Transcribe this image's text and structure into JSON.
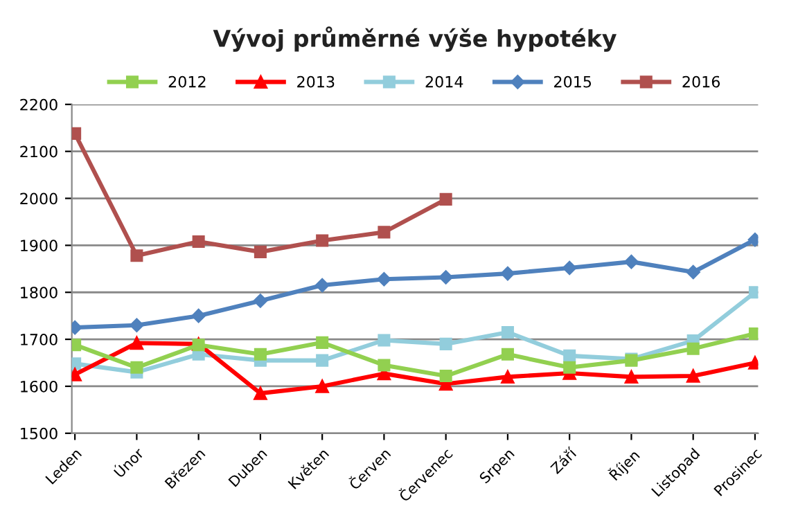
{
  "chart_data": {
    "type": "line",
    "title": "Vývoj průměrné výše hypotéky",
    "categories": [
      "Leden",
      "Únor",
      "Březen",
      "Duben",
      "Květen",
      "Červen",
      "Červenec",
      "Srpen",
      "Září",
      "Říjen",
      "Listopad",
      "Prosinec"
    ],
    "series": [
      {
        "name": "2012",
        "color": "#92d050",
        "marker": "square",
        "values": [
          1688,
          1640,
          1688,
          1668,
          1693,
          1645,
          1622,
          1668,
          1640,
          1655,
          1680,
          1712
        ]
      },
      {
        "name": "2013",
        "color": "#ff0000",
        "marker": "triangle",
        "values": [
          1625,
          1692,
          1690,
          1585,
          1600,
          1627,
          1605,
          1620,
          1628,
          1620,
          1622,
          1650
        ]
      },
      {
        "name": "2014",
        "color": "#92cddc",
        "marker": "square",
        "values": [
          1648,
          1630,
          1668,
          1655,
          1655,
          1698,
          1690,
          1715,
          1665,
          1658,
          1697,
          1800
        ]
      },
      {
        "name": "2015",
        "color": "#4f81bd",
        "marker": "diamond",
        "values": [
          1725,
          1730,
          1750,
          1782,
          1815,
          1828,
          1832,
          1840,
          1852,
          1865,
          1843,
          1912
        ]
      },
      {
        "name": "2016",
        "color": "#b0504e",
        "marker": "square",
        "values": [
          2138,
          1878,
          1908,
          1886,
          1910,
          1928,
          1998,
          null,
          null,
          null,
          null,
          null
        ]
      }
    ],
    "ylim": [
      1500,
      2200
    ],
    "yticks": [
      1500,
      1600,
      1700,
      1800,
      1900,
      2000,
      2100,
      2200
    ],
    "grid": "y",
    "legend": "top"
  }
}
